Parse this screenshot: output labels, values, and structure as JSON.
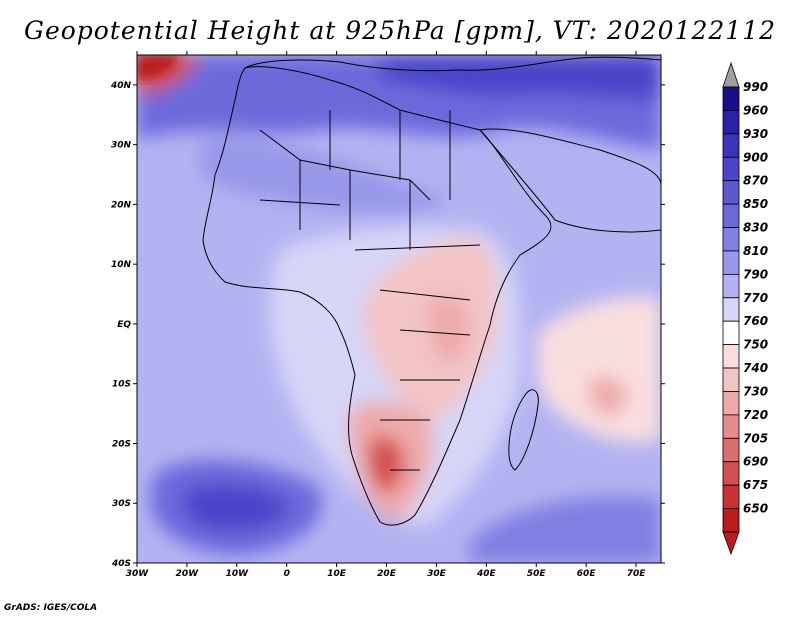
{
  "title": "Geopotential Height at 925hPa [gpm], VT: 2020122112",
  "credit": "GrADS: IGES/COLA",
  "map": {
    "lon_range": [
      -30,
      75
    ],
    "lat_range": [
      -40,
      45
    ],
    "lat_ticks": [
      {
        "value": 40,
        "label": "40N"
      },
      {
        "value": 30,
        "label": "30N"
      },
      {
        "value": 20,
        "label": "20N"
      },
      {
        "value": 10,
        "label": "10N"
      },
      {
        "value": 0,
        "label": "EQ"
      },
      {
        "value": -10,
        "label": "10S"
      },
      {
        "value": -20,
        "label": "20S"
      },
      {
        "value": -30,
        "label": "30S"
      },
      {
        "value": -40,
        "label": "40S"
      }
    ],
    "lon_ticks": [
      {
        "value": -30,
        "label": "30W"
      },
      {
        "value": -20,
        "label": "20W"
      },
      {
        "value": -10,
        "label": "10W"
      },
      {
        "value": 0,
        "label": "0"
      },
      {
        "value": 10,
        "label": "10E"
      },
      {
        "value": 20,
        "label": "20E"
      },
      {
        "value": 30,
        "label": "30E"
      },
      {
        "value": 40,
        "label": "40E"
      },
      {
        "value": 50,
        "label": "50E"
      },
      {
        "value": 60,
        "label": "60E"
      },
      {
        "value": 70,
        "label": "70E"
      }
    ],
    "background_color": "#b3b3f2"
  },
  "colorbar": {
    "levels": [
      "990",
      "960",
      "930",
      "900",
      "870",
      "850",
      "830",
      "810",
      "790",
      "770",
      "760",
      "750",
      "740",
      "730",
      "720",
      "705",
      "690",
      "675",
      "650"
    ],
    "colors": [
      "#1a0f8a",
      "#2b21a8",
      "#3a33bb",
      "#4a45c9",
      "#5b58d3",
      "#6c6adb",
      "#8080e2",
      "#9898ea",
      "#b3b3f2",
      "#d6d6f8",
      "#ffffff",
      "#f9dede",
      "#f3c4c4",
      "#eeaaaa",
      "#e58c8c",
      "#dc6e6e",
      "#d35050",
      "#c83232",
      "#b91c1c"
    ],
    "top_arrow_color": "#a0a0a0",
    "bottom_arrow_color": "#b91c1c"
  }
}
